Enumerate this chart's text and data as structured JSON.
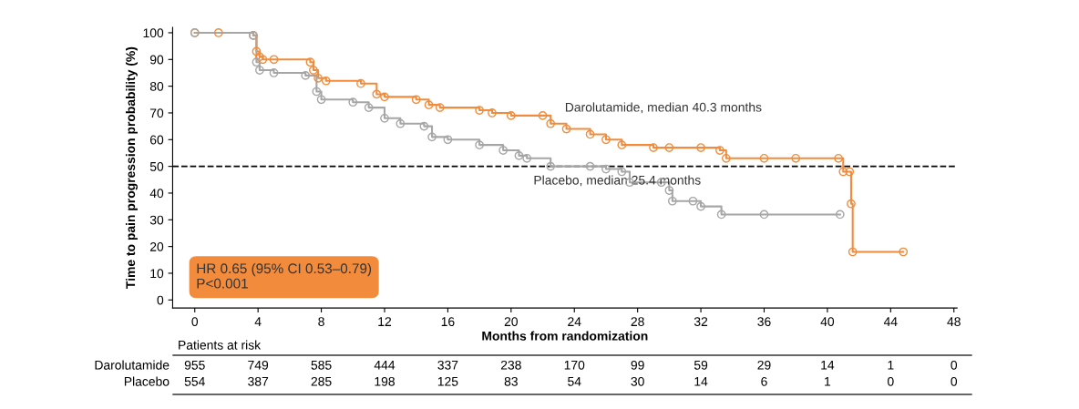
{
  "chart_data": {
    "type": "step",
    "xlabel": "Months from randomization",
    "ylabel": "Time to pain progression probability (%)",
    "xlim": [
      -1.4,
      48.2
    ],
    "xticks": [
      0,
      4,
      8,
      12,
      16,
      20,
      24,
      28,
      32,
      36,
      40,
      44,
      48
    ],
    "ylim": [
      -3,
      102
    ],
    "yticks": [
      0,
      10,
      20,
      30,
      40,
      50,
      60,
      70,
      80,
      90,
      100
    ],
    "marker": "circle",
    "line_style": "solid",
    "grid": false,
    "legend": false,
    "series": [
      {
        "name": "Darolutamide, median 40.3 months",
        "color": "#f28c3c",
        "x": [
          0,
          1.5,
          3.7,
          3.9,
          4.1,
          4.3,
          5,
          7.3,
          7.5,
          7.8,
          8.3,
          10.5,
          11.5,
          12,
          14,
          14.8,
          15.5,
          18,
          18.8,
          20,
          22,
          22.5,
          23.5,
          25,
          26,
          27,
          29,
          30,
          32,
          33.2,
          33.6,
          36,
          38,
          40.7,
          41,
          41.4,
          41.5,
          41.6,
          44.8
        ],
        "values": [
          100,
          100,
          99,
          93,
          91,
          90,
          90,
          89,
          86,
          83,
          82,
          81,
          77,
          76,
          75,
          73,
          72,
          71,
          70,
          69,
          69,
          66,
          64,
          62,
          60,
          58,
          57,
          57,
          57,
          56,
          53,
          53,
          53,
          53,
          48,
          48,
          36,
          18,
          18
        ]
      },
      {
        "name": "Placebo, median 25.4 months",
        "color": "#a6a6a6",
        "x": [
          0,
          3.7,
          3.9,
          4.1,
          5,
          7,
          7.7,
          8,
          10,
          11,
          12,
          13,
          14.5,
          15,
          16,
          18,
          19.5,
          20.5,
          21,
          22.5,
          25,
          26,
          27,
          27.5,
          29.5,
          30,
          30.2,
          31.5,
          32,
          33.3,
          36,
          40.8
        ],
        "values": [
          100,
          99,
          89,
          86,
          85,
          84,
          78,
          75,
          74,
          72,
          68,
          66,
          65,
          61,
          60,
          58,
          56,
          54,
          53,
          50,
          50,
          49,
          48,
          44,
          44,
          41,
          37,
          37,
          35,
          32,
          32,
          32
        ]
      }
    ],
    "ref_lines": [
      {
        "axis": "y",
        "value": 50,
        "color": "#000000",
        "line_style": "dashed"
      }
    ],
    "annotations": [
      "HR 0.65 (95% CI 0.53–0.79)\nP<0.001",
      "Patients at risk",
      "Darolutamide\t955\t749\t585\t444\t337\t238\t170\t99\t59\t29\t14\t1\t0",
      "Placebo\t554\t387\t285\t198\t125\t83\t54\t30\t14\t6\t1\t0\t0"
    ]
  }
}
